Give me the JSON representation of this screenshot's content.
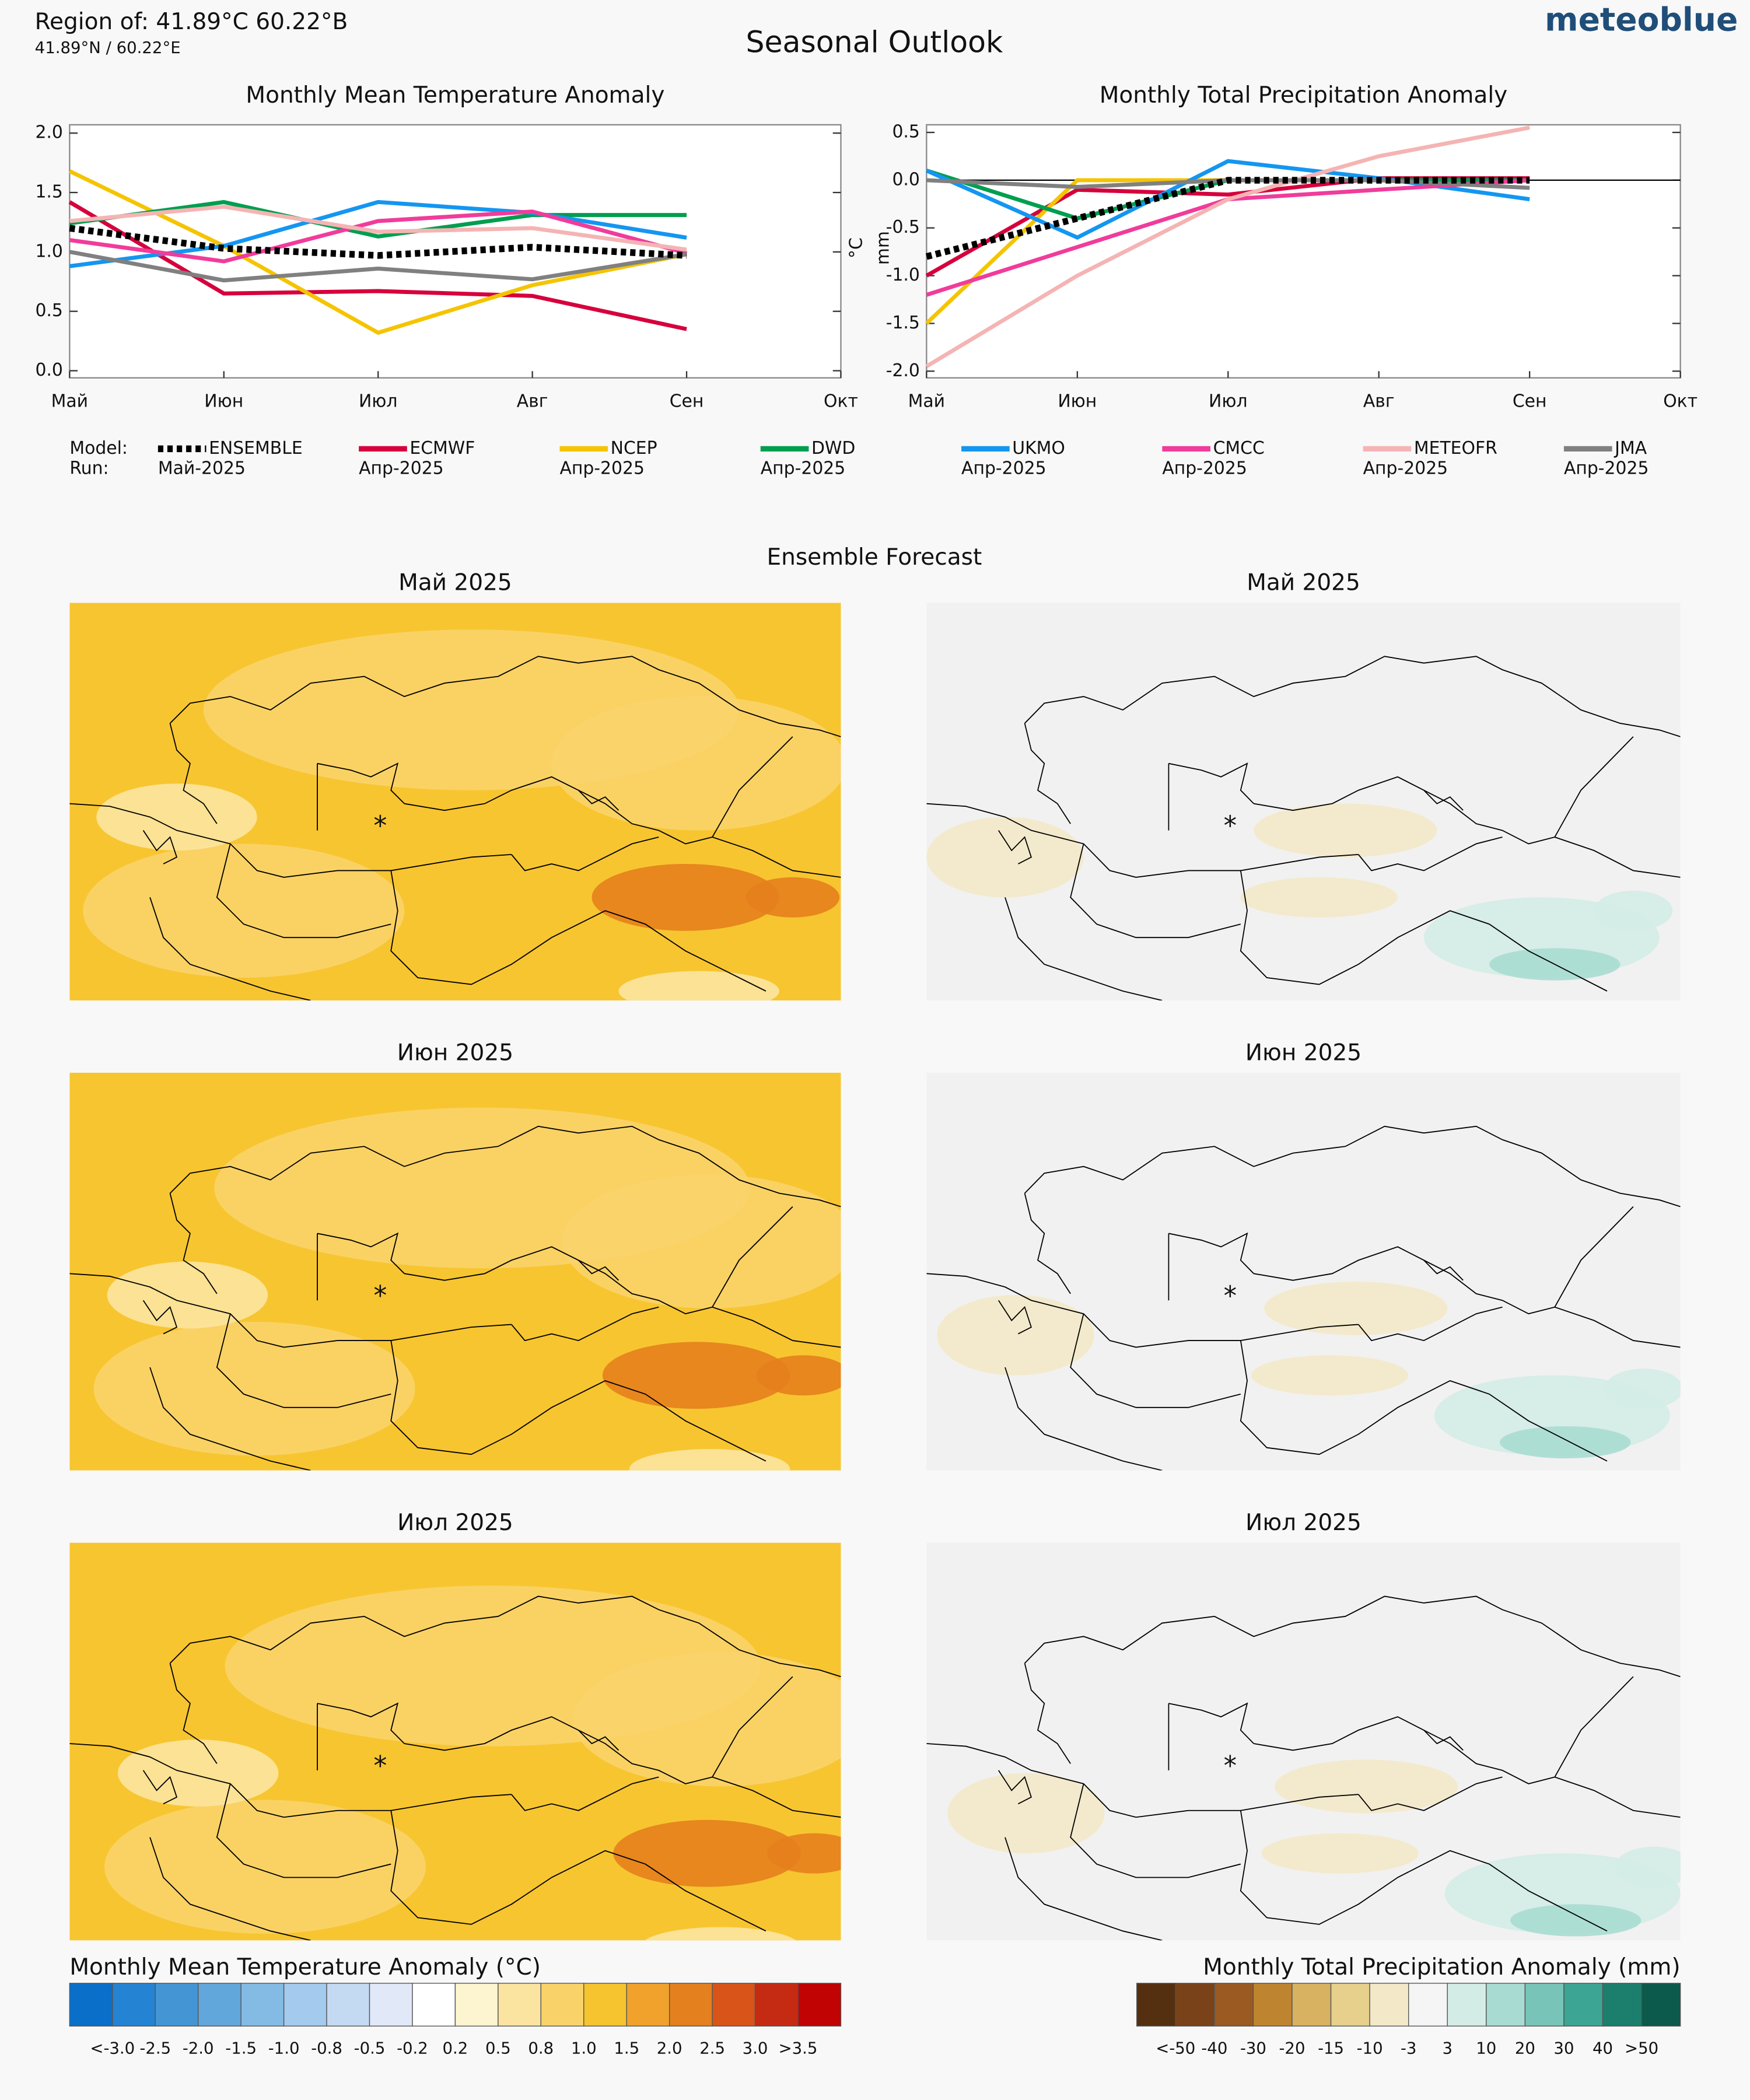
{
  "header": {
    "region": "Region of: 41.89°C 60.22°В",
    "coords": "41.89°N / 60.22°E",
    "title": "Seasonal Outlook",
    "brand": "meteoblue"
  },
  "chart_data": [
    {
      "type": "line",
      "title": "Monthly Mean Temperature Anomaly",
      "y_label": "°C",
      "categories": [
        "Май",
        "Июн",
        "Июл",
        "Авг",
        "Сен",
        "Окт"
      ],
      "ylim": [
        -0.06,
        2.07
      ],
      "yticks": [
        {
          "value": 0,
          "label": "0.0"
        },
        0.5,
        {
          "value": 1,
          "label": "1.0"
        },
        1.5,
        {
          "value": 2,
          "label": "2.0"
        }
      ],
      "series": [
        {
          "name": "ENSEMBLE",
          "run": "Май-2025",
          "color": "#000000",
          "style": "dotted",
          "values": [
            1.2,
            1.03,
            0.97,
            1.04,
            0.97,
            null
          ]
        },
        {
          "name": "ECMWF",
          "run": "Апр-2025",
          "color": "#d6003c",
          "values": [
            1.42,
            0.65,
            0.67,
            0.63,
            0.35,
            null
          ]
        },
        {
          "name": "NCEP",
          "run": "Апр-2025",
          "color": "#f5c400",
          "values": [
            1.68,
            1.05,
            0.32,
            0.72,
            0.98,
            null
          ]
        },
        {
          "name": "DWD",
          "run": "Апр-2025",
          "color": "#009e4f",
          "values": [
            1.24,
            1.42,
            1.13,
            1.31,
            1.31,
            null
          ]
        },
        {
          "name": "UKMO",
          "run": "Апр-2025",
          "color": "#1496f0",
          "values": [
            0.88,
            1.05,
            1.42,
            1.33,
            1.12,
            null
          ]
        },
        {
          "name": "CMCC",
          "run": "Апр-2025",
          "color": "#f03c9b",
          "values": [
            1.1,
            0.92,
            1.26,
            1.34,
            0.99,
            null
          ]
        },
        {
          "name": "METEOFR",
          "run": "Апр-2025",
          "color": "#f5b4b4",
          "values": [
            1.26,
            1.38,
            1.17,
            1.2,
            1.02,
            null
          ]
        },
        {
          "name": "JMA",
          "run": "Апр-2025",
          "color": "#808080",
          "values": [
            1.0,
            0.76,
            0.86,
            0.77,
            0.98,
            null
          ]
        }
      ]
    },
    {
      "type": "line",
      "title": "Monthly Total Precipitation Anomaly",
      "y_label": "mm",
      "zero_line": true,
      "categories": [
        "Май",
        "Июн",
        "Июл",
        "Авг",
        "Сен",
        "Окт"
      ],
      "ylim": [
        -2.07,
        0.58
      ],
      "yticks": [
        {
          "value": -2,
          "label": "-2.0"
        },
        -1.5,
        {
          "value": -1,
          "label": "-1.0"
        },
        -0.5,
        {
          "value": 0,
          "label": "0.0"
        },
        0.5
      ],
      "series": [
        {
          "name": "ENSEMBLE",
          "color": "#000000",
          "style": "dotted",
          "values": [
            -0.8,
            -0.4,
            0.0,
            0.0,
            0.0,
            null
          ]
        },
        {
          "name": "ECMWF",
          "color": "#d6003c",
          "values": [
            -1.0,
            -0.1,
            -0.15,
            0.02,
            0.02,
            null
          ]
        },
        {
          "name": "NCEP",
          "color": "#f5c400",
          "values": [
            -1.5,
            0.0,
            0.0,
            0.0,
            0.0,
            null
          ]
        },
        {
          "name": "DWD",
          "color": "#009e4f",
          "values": [
            0.1,
            -0.4,
            0.0,
            0.0,
            0.0,
            null
          ]
        },
        {
          "name": "UKMO",
          "color": "#1496f0",
          "values": [
            0.1,
            -0.6,
            0.2,
            0.02,
            -0.2,
            null
          ]
        },
        {
          "name": "CMCC",
          "color": "#f03c9b",
          "values": [
            -1.2,
            -0.7,
            -0.2,
            -0.1,
            0.0,
            null
          ]
        },
        {
          "name": "METEOFR",
          "color": "#f5b4b4",
          "values": [
            -1.95,
            -1.0,
            -0.2,
            0.25,
            0.55,
            null
          ]
        },
        {
          "name": "JMA",
          "color": "#808080",
          "values": [
            0.0,
            -0.07,
            0.0,
            0.0,
            -0.08,
            null
          ]
        }
      ]
    }
  ],
  "legend": {
    "model_label": "Model:",
    "run_label": "Run:"
  },
  "maps": {
    "title": "Ensemble Forecast",
    "panels": [
      {
        "title": "Май 2025"
      },
      {
        "title": "Май 2025"
      },
      {
        "title": "Июн 2025"
      },
      {
        "title": "Июн 2025"
      },
      {
        "title": "Июл 2025"
      },
      {
        "title": "Июл 2025"
      }
    ]
  },
  "colorbars": [
    {
      "title": "Monthly Mean Temperature Anomaly (°C)",
      "colors": [
        "#0a6fc9",
        "#2583d3",
        "#4495d3",
        "#62a7dc",
        "#84bbe4",
        "#a4cbee",
        "#c4daf3",
        "#e1e8f8",
        "#ffffff",
        "#fdf4d0",
        "#fbe4a0",
        "#f9d36a",
        "#f6c42e",
        "#f0a22c",
        "#e4801d",
        "#d95418",
        "#c52a12",
        "#c10303"
      ],
      "labels": [
        "<-3.0",
        "-2.5",
        "-2.0",
        "-1.5",
        "-1.0",
        "-0.8",
        "-0.5",
        "-0.2",
        "0.2",
        "0.5",
        "0.8",
        "1.0",
        "1.5",
        "2.0",
        "2.5",
        "3.0",
        ">3.5"
      ]
    },
    {
      "title": "Monthly Total Precipitation Anomaly (mm)",
      "colors": [
        "#543011",
        "#7a4218",
        "#9a5a22",
        "#bf842f",
        "#d8b260",
        "#e6d08c",
        "#f3e8c8",
        "#f5f5f5",
        "#d4ece6",
        "#a8dcd2",
        "#79c4b8",
        "#3da593",
        "#1c7f6d",
        "#0c5a4b"
      ],
      "labels": [
        "<-50",
        "-40",
        "-30",
        "-20",
        "-15",
        "-10",
        "-3",
        "3",
        "10",
        "20",
        "30",
        "40",
        ">50"
      ]
    }
  ]
}
